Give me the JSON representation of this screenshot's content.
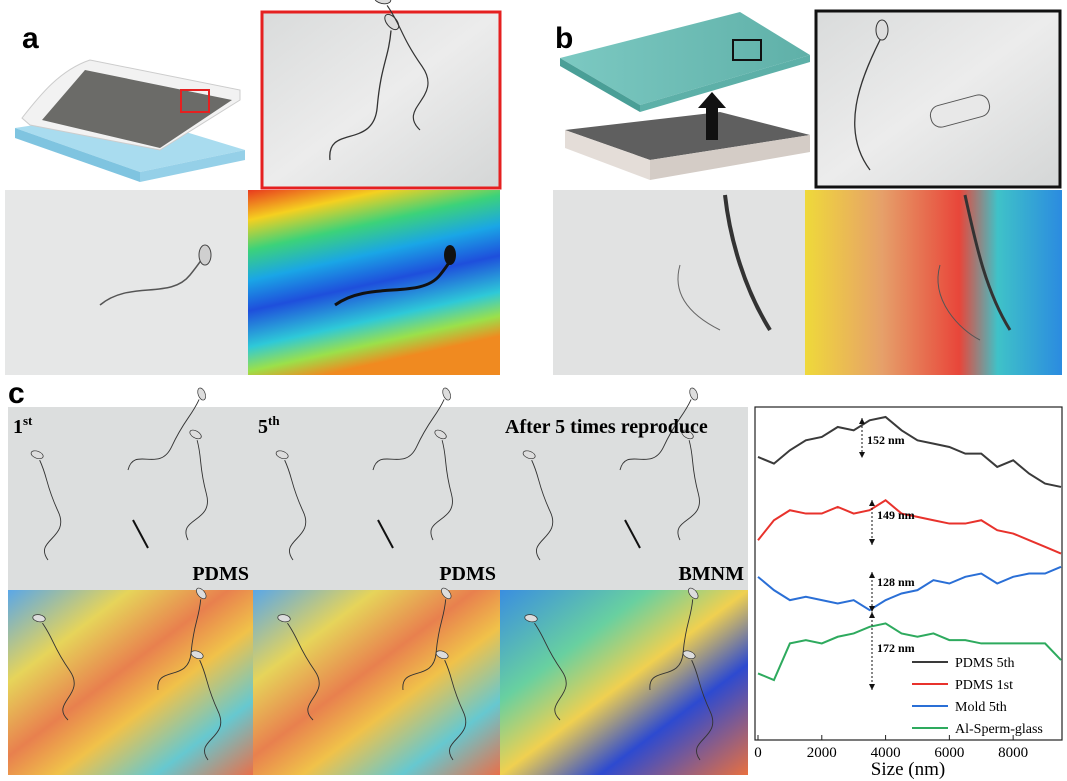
{
  "panels": {
    "a": {
      "label": "a"
    },
    "b": {
      "label": "b"
    },
    "c": {
      "label": "c",
      "images": [
        {
          "label": "1",
          "label_sup": "st",
          "material": "PDMS"
        },
        {
          "label": "5",
          "label_sup": "th",
          "material": "PDMS"
        },
        {
          "label": "After 5 times reproduce",
          "material": "BMNM"
        }
      ]
    }
  },
  "chart_data": {
    "type": "line",
    "x_label": "Size (nm)",
    "x": [
      0,
      500,
      1000,
      1500,
      2000,
      2500,
      3000,
      3500,
      4000,
      4500,
      5000,
      5500,
      6000,
      6500,
      7000,
      7500,
      8000,
      8500,
      9000,
      9500
    ],
    "series": [
      {
        "name": "PDMS 5th",
        "color": "#3a3a3a",
        "values": [
          85,
          83,
          87,
          90,
          91,
          94,
          93,
          96,
          97,
          93,
          90,
          89,
          88,
          86,
          86,
          82,
          84,
          80,
          77,
          76
        ]
      },
      {
        "name": "PDMS 1st",
        "color": "#e8322c",
        "values": [
          60,
          66,
          69,
          68,
          68,
          70,
          68,
          69,
          72,
          68,
          67,
          66,
          65,
          65,
          66,
          63,
          62,
          60,
          58,
          56
        ]
      },
      {
        "name": "Mold 5th",
        "color": "#2a6fd6",
        "values": [
          49,
          45,
          42,
          43,
          42,
          41,
          42,
          39,
          42,
          44,
          45,
          48,
          47,
          49,
          50,
          47,
          49,
          50,
          50,
          52
        ]
      },
      {
        "name": "Al-Sperm-glass",
        "color": "#2eaa5e",
        "values": [
          20,
          18,
          29,
          30,
          29,
          31,
          32,
          34,
          35,
          32,
          31,
          32,
          30,
          30,
          29,
          29,
          29,
          29,
          29,
          24
        ]
      }
    ],
    "xlim": [
      0,
      9500
    ],
    "xticks": [
      0,
      2000,
      4000,
      6000,
      8000
    ],
    "ylim": [
      0,
      100
    ],
    "annotations": [
      "152 nm",
      "149 nm",
      "128 nm",
      "172 nm"
    ],
    "legend": "lower right"
  }
}
